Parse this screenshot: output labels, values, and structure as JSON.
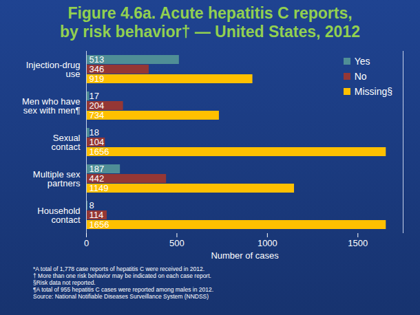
{
  "chart_data": {
    "type": "bar",
    "title": "Figure 4.6a. Acute hepatitis C reports,\nby risk behavior† — United States, 2012",
    "orientation": "horizontal",
    "categories": [
      "Injection-drug use",
      "Men who have sex with men¶",
      "Sexual contact",
      "Multiple sex partners",
      "Household contact"
    ],
    "series": [
      {
        "name": "Yes",
        "color": "#4f8e96",
        "values": [
          513,
          17,
          18,
          187,
          8
        ]
      },
      {
        "name": "No",
        "color": "#953735",
        "values": [
          346,
          204,
          104,
          442,
          114
        ]
      },
      {
        "name": "Missing§",
        "color": "#ffc000",
        "values": [
          919,
          734,
          1656,
          1149,
          1656
        ]
      }
    ],
    "x_label": "Number of cases",
    "xlim": [
      0,
      1750
    ],
    "xticks": [
      0,
      500,
      1000,
      1500
    ],
    "grid": false,
    "legend": "top-right",
    "data_labels": true,
    "annotations": [
      "*A total of 1,778 case reports of hepatitis C were received in 2012.",
      "† More than one risk behavior may be indicated on each case report.",
      "§Risk data not reported.",
      "¶A total of 955 hepatitis C cases were reported among males in 2012.",
      "Source: National Notifiable Diseases Surveillance System (NNDSS)"
    ]
  }
}
